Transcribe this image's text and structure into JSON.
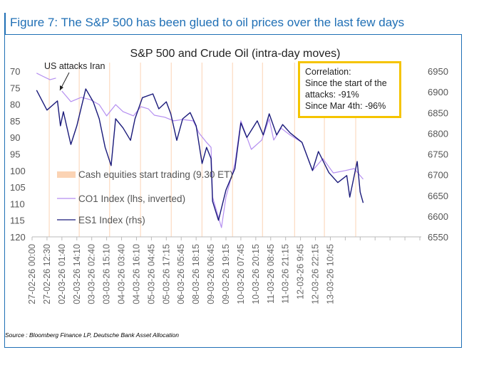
{
  "header": {
    "title": "Figure 7: The S&P 500 has been glued to oil prices over the last few days"
  },
  "correlation_box": {
    "heading": "Correlation:",
    "line1": "Since the start of the",
    "line2": "attacks: -91%",
    "line3": "Since Mar 4th: -96%"
  },
  "source": "Source : Bloomberg Finance LP, Deutsche Bank Asset Allocation",
  "colors": {
    "brand": "#1f6fb5",
    "es1": "#1a1a7a",
    "co1": "#b48ef0",
    "cash_open": "#fbd3b4",
    "box_border": "#f5c400"
  },
  "chart_data": {
    "type": "line",
    "title": "S&P 500 and Crude Oil (intra-day moves)",
    "annotation": "US attacks Iran",
    "x_tick_labels": [
      "27-02-26 00:00",
      "27-02-26 12:30",
      "02-03-26 01:40",
      "02-03-26 14:10",
      "03-03-26 02:40",
      "03-03-26 15:10",
      "04-03-26 03:40",
      "04-03-26 16:10",
      "05-03-26 04:45",
      "05-03-26 17:15",
      "06-03-26 05:45",
      "08-03-26 18:15",
      "09-03-26 06:45",
      "09-03-26 19:15",
      "10-03-26 07:45",
      "10-03-26 20:15",
      "11-03-26 08:45",
      "11-03-26 21:15",
      "12-03-26 9:45",
      "12-03-26 22:15",
      "13-03-26 10:45"
    ],
    "y_left": {
      "label": "CO1 Index (lhs, inverted)",
      "range": [
        70,
        120
      ],
      "inverted": true,
      "ticks": [
        70,
        75,
        80,
        85,
        90,
        95,
        100,
        105,
        110,
        115,
        120
      ]
    },
    "y_right": {
      "label": "ES1 Index (rhs)",
      "range": [
        6550,
        6950
      ],
      "ticks": [
        6950,
        6900,
        6850,
        6800,
        6750,
        6700,
        6650,
        6600,
        6550
      ]
    },
    "legend": [
      "Cash equities start trading (9.30 ET)",
      "CO1 Index (lhs, inverted)",
      "ES1 Index (rhs)"
    ],
    "legend_placement": "bottom-left",
    "grid": false,
    "cash_open_x": [
      11.5,
      31.6,
      52,
      72.7,
      93.3,
      113.9,
      134.4,
      154.5,
      176,
      196,
      217
    ],
    "series": [
      {
        "name": "CO1 Index (lhs, inverted)",
        "axis": "left",
        "x": [
          3,
          7,
          12,
          16,
          null,
          20,
          26,
          33,
          39,
          45,
          50,
          56,
          61,
          68,
          73,
          78,
          82,
          89,
          95,
          101,
          108,
          112,
          117,
          120,
          121,
          127,
          130,
          136,
          140,
          147,
          154,
          159,
          162,
          167,
          173,
          181,
          188,
          195,
          202,
          210,
          216,
          222
        ],
        "y": [
          70.6,
          71.5,
          72.6,
          72.1,
          null,
          76.0,
          79.2,
          77.9,
          78.6,
          80.1,
          83.5,
          80.1,
          82.2,
          83.5,
          80.7,
          81.4,
          83.3,
          83.9,
          85.0,
          84.6,
          85.0,
          88.7,
          91.5,
          93.0,
          108,
          117.2,
          108,
          97.9,
          85.0,
          93.6,
          90.8,
          84.4,
          90.8,
          87.2,
          89.3,
          91.5,
          100,
          96.4,
          100.7,
          100,
          99.4,
          102.6
        ]
      },
      {
        "name": "ES1 Index (rhs)",
        "axis": "right",
        "x": [
          3,
          10,
          17,
          19,
          21,
          26,
          30,
          36,
          41,
          45,
          49,
          53,
          56,
          61,
          66,
          69,
          74,
          81,
          85,
          90,
          93,
          97,
          101,
          106,
          110,
          114,
          117,
          120,
          121,
          125,
          130,
          136,
          140,
          144,
          151,
          155,
          159,
          164,
          168,
          173,
          181,
          188,
          192,
          199,
          205,
          211,
          213,
          218,
          220,
          222
        ],
        "y": [
          6904,
          6856,
          6878,
          6818,
          6852,
          6773,
          6818,
          6907,
          6876,
          6835,
          6766,
          6722,
          6835,
          6813,
          6783,
          6835,
          6886,
          6895,
          6859,
          6876,
          6847,
          6783,
          6835,
          6850,
          6818,
          6727,
          6766,
          6739,
          6636,
          6590,
          6663,
          6715,
          6825,
          6790,
          6830,
          6796,
          6847,
          6796,
          6821,
          6801,
          6778,
          6710,
          6756,
          6705,
          6681,
          6698,
          6646,
          6732,
          6658,
          6632
        ]
      }
    ]
  }
}
